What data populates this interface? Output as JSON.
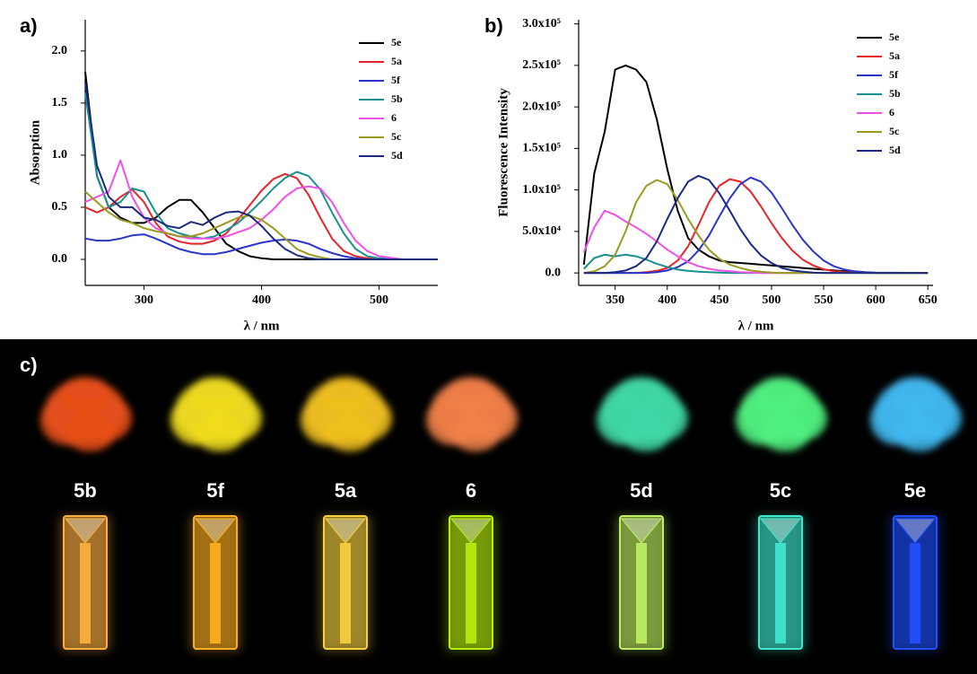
{
  "chart_data": [
    {
      "type": "line",
      "panel_label": "a)",
      "xlabel": "λ / nm",
      "ylabel": "Absorption",
      "xlim": [
        250,
        550
      ],
      "xticks": [
        300,
        400,
        500
      ],
      "ylim": [
        -0.25,
        2.3
      ],
      "yticks": [
        {
          "value": 0,
          "label": "0.0"
        },
        {
          "value": 0.5,
          "label": "0.5"
        },
        {
          "value": 1,
          "label": "1.0"
        },
        {
          "value": 1.5,
          "label": "1.5"
        },
        {
          "value": 2,
          "label": "2.0"
        }
      ],
      "legend": "upper right",
      "x": [
        250,
        260,
        270,
        280,
        290,
        300,
        310,
        320,
        330,
        340,
        350,
        360,
        370,
        380,
        390,
        400,
        410,
        420,
        430,
        440,
        450,
        460,
        470,
        480,
        490,
        500,
        520,
        550
      ],
      "series": [
        {
          "name": "5e",
          "color": "#000000",
          "values": [
            1.8,
            0.8,
            0.5,
            0.4,
            0.35,
            0.35,
            0.4,
            0.5,
            0.57,
            0.57,
            0.45,
            0.3,
            0.15,
            0.08,
            0.03,
            0.01,
            0,
            0,
            0,
            0,
            0,
            0,
            0,
            0,
            0,
            0,
            0,
            0
          ]
        },
        {
          "name": "5a",
          "color": "#e8232a",
          "values": [
            0.5,
            0.45,
            0.5,
            0.6,
            0.67,
            0.55,
            0.35,
            0.22,
            0.17,
            0.15,
            0.15,
            0.18,
            0.25,
            0.38,
            0.52,
            0.66,
            0.77,
            0.82,
            0.78,
            0.62,
            0.4,
            0.2,
            0.08,
            0.03,
            0.01,
            0,
            0,
            0
          ]
        },
        {
          "name": "5f",
          "color": "#2a35c9",
          "values": [
            0.2,
            0.18,
            0.18,
            0.2,
            0.23,
            0.24,
            0.2,
            0.15,
            0.1,
            0.07,
            0.05,
            0.05,
            0.07,
            0.1,
            0.13,
            0.16,
            0.18,
            0.19,
            0.18,
            0.15,
            0.1,
            0.06,
            0.03,
            0.01,
            0,
            0,
            0,
            0
          ]
        },
        {
          "name": "5b",
          "color": "#1a9090",
          "values": [
            1.6,
            0.8,
            0.5,
            0.55,
            0.68,
            0.65,
            0.45,
            0.3,
            0.25,
            0.22,
            0.2,
            0.22,
            0.28,
            0.35,
            0.45,
            0.56,
            0.68,
            0.78,
            0.84,
            0.8,
            0.67,
            0.45,
            0.25,
            0.1,
            0.03,
            0.01,
            0,
            0
          ]
        },
        {
          "name": "6",
          "color": "#f050e8",
          "values": [
            0.55,
            0.6,
            0.65,
            0.95,
            0.6,
            0.4,
            0.3,
            0.25,
            0.22,
            0.2,
            0.2,
            0.2,
            0.22,
            0.26,
            0.3,
            0.38,
            0.48,
            0.6,
            0.68,
            0.7,
            0.68,
            0.55,
            0.35,
            0.18,
            0.08,
            0.03,
            0,
            0
          ]
        },
        {
          "name": "5c",
          "color": "#9a9a20",
          "values": [
            0.65,
            0.55,
            0.45,
            0.38,
            0.35,
            0.3,
            0.27,
            0.25,
            0.22,
            0.22,
            0.25,
            0.3,
            0.35,
            0.4,
            0.42,
            0.38,
            0.3,
            0.2,
            0.1,
            0.05,
            0.02,
            0,
            0,
            0,
            0,
            0,
            0,
            0
          ]
        },
        {
          "name": "5d",
          "color": "#1a2a80",
          "values": [
            1.7,
            0.9,
            0.6,
            0.5,
            0.5,
            0.4,
            0.38,
            0.32,
            0.3,
            0.36,
            0.33,
            0.4,
            0.45,
            0.46,
            0.42,
            0.32,
            0.2,
            0.1,
            0.04,
            0.01,
            0,
            0,
            0,
            0,
            0,
            0,
            0,
            0
          ]
        }
      ]
    },
    {
      "type": "line",
      "panel_label": "b)",
      "xlabel": "λ / nm",
      "ylabel": "Fluorescence Intensity",
      "xlim": [
        315,
        655
      ],
      "xticks": [
        350,
        400,
        450,
        500,
        550,
        600,
        650
      ],
      "ylim": [
        -15000,
        305000
      ],
      "yticks": [
        {
          "value": 0,
          "label": "0.0"
        },
        {
          "value": 50000,
          "label": "5.0x10⁴"
        },
        {
          "value": 100000,
          "label": "1.0x10⁵"
        },
        {
          "value": 150000,
          "label": "1.5x10⁵"
        },
        {
          "value": 200000,
          "label": "2.0x10⁵"
        },
        {
          "value": 250000,
          "label": "2.5x10⁵"
        },
        {
          "value": 300000,
          "label": "3.0x10⁵"
        }
      ],
      "legend": "upper right",
      "x": [
        320,
        330,
        340,
        350,
        360,
        370,
        380,
        390,
        400,
        410,
        420,
        430,
        440,
        450,
        460,
        470,
        480,
        490,
        500,
        510,
        520,
        530,
        540,
        550,
        560,
        570,
        580,
        590,
        600,
        650
      ],
      "series": [
        {
          "name": "5e",
          "color": "#000000",
          "values": [
            10000,
            120000,
            170000,
            245000,
            250000,
            245000,
            230000,
            185000,
            125000,
            75000,
            42000,
            28000,
            20000,
            15000,
            13000,
            12000,
            11000,
            10000,
            9000,
            8000,
            7000,
            6000,
            5000,
            4000,
            3000,
            2000,
            1000,
            500,
            0,
            0
          ]
        },
        {
          "name": "5a",
          "color": "#e8232a",
          "values": [
            0,
            0,
            0,
            0,
            0,
            0,
            1000,
            2500,
            6000,
            15000,
            32000,
            58000,
            85000,
            105000,
            113000,
            110000,
            98000,
            80000,
            60000,
            42000,
            27000,
            16000,
            9000,
            4500,
            2000,
            1000,
            500,
            0,
            0,
            0
          ]
        },
        {
          "name": "5f",
          "color": "#2a35c9",
          "values": [
            0,
            0,
            0,
            0,
            0,
            0,
            0,
            1000,
            3000,
            7000,
            14000,
            27000,
            45000,
            68000,
            90000,
            107000,
            115000,
            110000,
            97000,
            78000,
            58000,
            40000,
            26000,
            15000,
            8000,
            4000,
            2000,
            1000,
            500,
            0
          ]
        },
        {
          "name": "5b",
          "color": "#1a9090",
          "values": [
            5000,
            18000,
            22000,
            20000,
            22000,
            20000,
            16000,
            11000,
            7000,
            4000,
            2500,
            1500,
            1000,
            500,
            0,
            0,
            0,
            0,
            0,
            0,
            0,
            0,
            null,
            null,
            null,
            null,
            null,
            null,
            null,
            null
          ]
        },
        {
          "name": "6",
          "color": "#f050e8",
          "values": [
            25000,
            55000,
            75000,
            70000,
            62000,
            55000,
            47000,
            38000,
            28000,
            20000,
            13000,
            8000,
            5000,
            3000,
            2000,
            1000,
            500,
            0,
            0,
            0,
            0,
            0,
            null,
            null,
            null,
            null,
            null,
            null,
            null,
            null
          ]
        },
        {
          "name": "5c",
          "color": "#9a9a20",
          "values": [
            0,
            2000,
            8000,
            22000,
            50000,
            85000,
            105000,
            112000,
            107000,
            88000,
            65000,
            45000,
            28000,
            17000,
            10000,
            6000,
            3000,
            1500,
            500,
            0,
            0,
            0,
            0,
            0,
            0,
            0,
            0,
            0,
            0,
            0
          ]
        },
        {
          "name": "5d",
          "color": "#1a2a80",
          "values": [
            0,
            0,
            0,
            1000,
            3000,
            8000,
            18000,
            38000,
            65000,
            90000,
            110000,
            117000,
            112000,
            96000,
            75000,
            53000,
            35000,
            21000,
            12000,
            6000,
            3000,
            1500,
            500,
            0,
            0,
            0,
            0,
            0,
            0,
            0
          ]
        }
      ]
    }
  ],
  "photo": {
    "panel_label": "c)",
    "samples": [
      {
        "name": "5b",
        "powder_color": "#e8501a",
        "solution_color": "#ffb040"
      },
      {
        "name": "5f",
        "powder_color": "#f0dc20",
        "solution_color": "#ffb020"
      },
      {
        "name": "5a",
        "powder_color": "#f0c020",
        "solution_color": "#f8d040"
      },
      {
        "name": "6",
        "powder_color": "#f08048",
        "solution_color": "#b8f010"
      },
      {
        "name": "5d",
        "powder_color": "#40d8a8",
        "solution_color": "#c0f060"
      },
      {
        "name": "5c",
        "powder_color": "#50f080",
        "solution_color": "#40e8d0"
      },
      {
        "name": "5e",
        "powder_color": "#40b8f0",
        "solution_color": "#2050ff"
      }
    ]
  }
}
